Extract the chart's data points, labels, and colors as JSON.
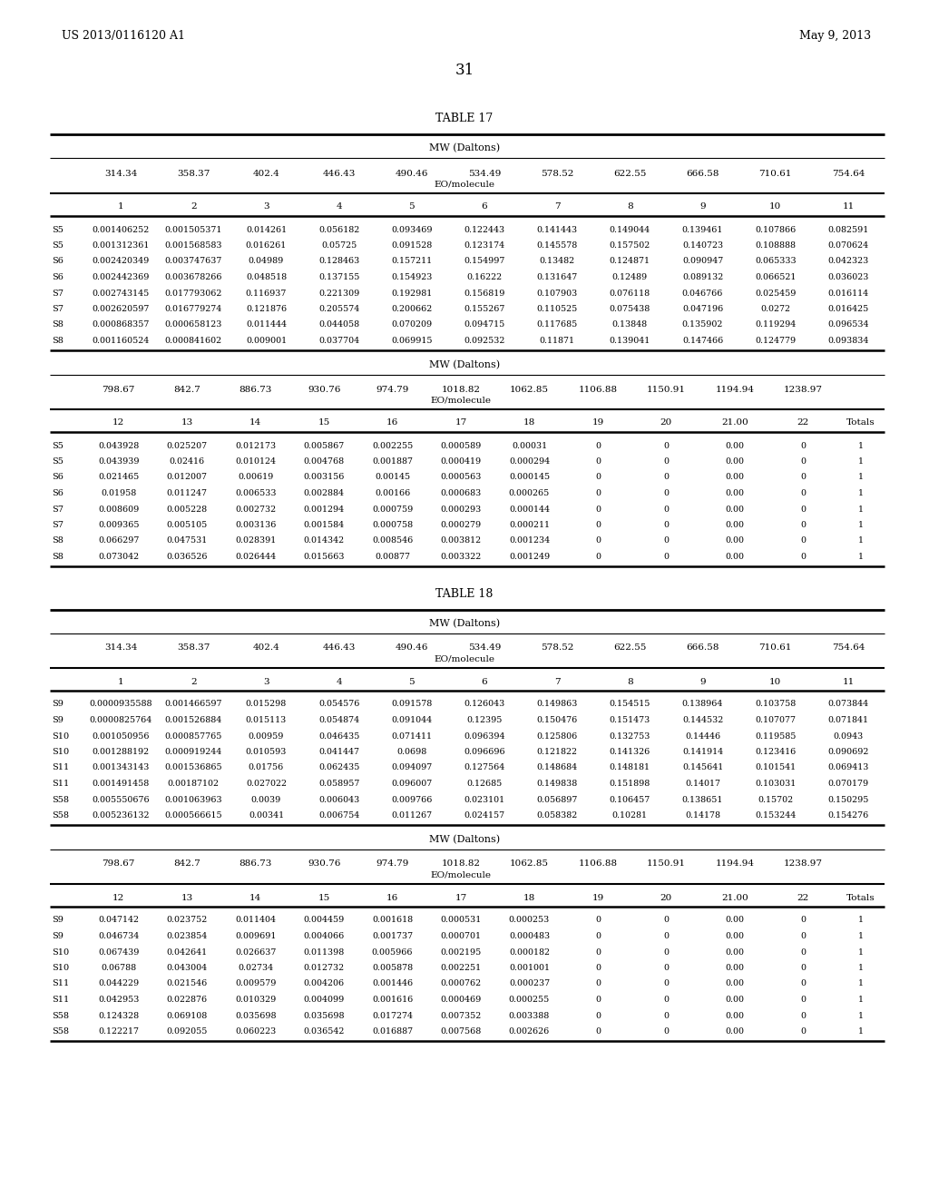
{
  "header_left": "US 2013/0116120 A1",
  "header_right": "May 9, 2013",
  "page_number": "31",
  "table17_title": "TABLE 17",
  "table18_title": "TABLE 18",
  "mw_label": "MW (Daltons)",
  "eo_label": "EO/molecule",
  "t17_cols1": [
    "314.34",
    "358.37",
    "402.4",
    "446.43",
    "490.46",
    "534.49",
    "578.52",
    "622.55",
    "666.58",
    "710.61",
    "754.64"
  ],
  "t17_cols2": [
    "798.67",
    "842.7",
    "886.73",
    "930.76",
    "974.79",
    "1018.82",
    "1062.85",
    "1106.88",
    "1150.91",
    "1194.94",
    "1238.97"
  ],
  "t17_eon1": [
    "1",
    "2",
    "3",
    "4",
    "5",
    "6",
    "7",
    "8",
    "9",
    "10",
    "11"
  ],
  "t17_eon2": [
    "12",
    "13",
    "14",
    "15",
    "16",
    "17",
    "18",
    "19",
    "20",
    "21.00",
    "22",
    "Totals"
  ],
  "t17_rows_part1": [
    [
      "S5",
      "0.001406252",
      "0.001505371",
      "0.014261",
      "0.056182",
      "0.093469",
      "0.122443",
      "0.141443",
      "0.149044",
      "0.139461",
      "0.107866",
      "0.082591"
    ],
    [
      "S5",
      "0.001312361",
      "0.001568583",
      "0.016261",
      "0.05725",
      "0.091528",
      "0.123174",
      "0.145578",
      "0.157502",
      "0.140723",
      "0.108888",
      "0.070624"
    ],
    [
      "S6",
      "0.002420349",
      "0.003747637",
      "0.04989",
      "0.128463",
      "0.157211",
      "0.154997",
      "0.13482",
      "0.124871",
      "0.090947",
      "0.065333",
      "0.042323"
    ],
    [
      "S6",
      "0.002442369",
      "0.003678266",
      "0.048518",
      "0.137155",
      "0.154923",
      "0.16222",
      "0.131647",
      "0.12489",
      "0.089132",
      "0.066521",
      "0.036023"
    ],
    [
      "S7",
      "0.002743145",
      "0.017793062",
      "0.116937",
      "0.221309",
      "0.192981",
      "0.156819",
      "0.107903",
      "0.076118",
      "0.046766",
      "0.025459",
      "0.016114"
    ],
    [
      "S7",
      "0.002620597",
      "0.016779274",
      "0.121876",
      "0.205574",
      "0.200662",
      "0.155267",
      "0.110525",
      "0.075438",
      "0.047196",
      "0.0272",
      "0.016425"
    ],
    [
      "S8",
      "0.000868357",
      "0.000658123",
      "0.011444",
      "0.044058",
      "0.070209",
      "0.094715",
      "0.117685",
      "0.13848",
      "0.135902",
      "0.119294",
      "0.096534"
    ],
    [
      "S8",
      "0.001160524",
      "0.000841602",
      "0.009001",
      "0.037704",
      "0.069915",
      "0.092532",
      "0.11871",
      "0.139041",
      "0.147466",
      "0.124779",
      "0.093834"
    ]
  ],
  "t17_rows_part2": [
    [
      "S5",
      "0.043928",
      "0.025207",
      "0.012173",
      "0.005867",
      "0.002255",
      "0.000589",
      "0.00031",
      "0",
      "0",
      "0.00",
      "0",
      "1"
    ],
    [
      "S5",
      "0.043939",
      "0.02416",
      "0.010124",
      "0.004768",
      "0.001887",
      "0.000419",
      "0.000294",
      "0",
      "0",
      "0.00",
      "0",
      "1"
    ],
    [
      "S6",
      "0.021465",
      "0.012007",
      "0.00619",
      "0.003156",
      "0.00145",
      "0.000563",
      "0.000145",
      "0",
      "0",
      "0.00",
      "0",
      "1"
    ],
    [
      "S6",
      "0.01958",
      "0.011247",
      "0.006533",
      "0.002884",
      "0.00166",
      "0.000683",
      "0.000265",
      "0",
      "0",
      "0.00",
      "0",
      "1"
    ],
    [
      "S7",
      "0.008609",
      "0.005228",
      "0.002732",
      "0.001294",
      "0.000759",
      "0.000293",
      "0.000144",
      "0",
      "0",
      "0.00",
      "0",
      "1"
    ],
    [
      "S7",
      "0.009365",
      "0.005105",
      "0.003136",
      "0.001584",
      "0.000758",
      "0.000279",
      "0.000211",
      "0",
      "0",
      "0.00",
      "0",
      "1"
    ],
    [
      "S8",
      "0.066297",
      "0.047531",
      "0.028391",
      "0.014342",
      "0.008546",
      "0.003812",
      "0.001234",
      "0",
      "0",
      "0.00",
      "0",
      "1"
    ],
    [
      "S8",
      "0.073042",
      "0.036526",
      "0.026444",
      "0.015663",
      "0.00877",
      "0.003322",
      "0.001249",
      "0",
      "0",
      "0.00",
      "0",
      "1"
    ]
  ],
  "t18_rows_part1": [
    [
      "S9",
      "0.0000935588",
      "0.001466597",
      "0.015298",
      "0.054576",
      "0.091578",
      "0.126043",
      "0.149863",
      "0.154515",
      "0.138964",
      "0.103758",
      "0.073844"
    ],
    [
      "S9",
      "0.0000825764",
      "0.001526884",
      "0.015113",
      "0.054874",
      "0.091044",
      "0.12395",
      "0.150476",
      "0.151473",
      "0.144532",
      "0.107077",
      "0.071841"
    ],
    [
      "S10",
      "0.001050956",
      "0.000857765",
      "0.00959",
      "0.046435",
      "0.071411",
      "0.096394",
      "0.125806",
      "0.132753",
      "0.14446",
      "0.119585",
      "0.0943"
    ],
    [
      "S10",
      "0.001288192",
      "0.000919244",
      "0.010593",
      "0.041447",
      "0.0698",
      "0.096696",
      "0.121822",
      "0.141326",
      "0.141914",
      "0.123416",
      "0.090692"
    ],
    [
      "S11",
      "0.001343143",
      "0.001536865",
      "0.01756",
      "0.062435",
      "0.094097",
      "0.127564",
      "0.148684",
      "0.148181",
      "0.145641",
      "0.101541",
      "0.069413"
    ],
    [
      "S11",
      "0.001491458",
      "0.00187102",
      "0.027022",
      "0.058957",
      "0.096007",
      "0.12685",
      "0.149838",
      "0.151898",
      "0.14017",
      "0.103031",
      "0.070179"
    ],
    [
      "S58",
      "0.005550676",
      "0.001063963",
      "0.0039",
      "0.006043",
      "0.009766",
      "0.023101",
      "0.056897",
      "0.106457",
      "0.138651",
      "0.15702",
      "0.150295"
    ],
    [
      "S58",
      "0.005236132",
      "0.000566615",
      "0.00341",
      "0.006754",
      "0.011267",
      "0.024157",
      "0.058382",
      "0.10281",
      "0.14178",
      "0.153244",
      "0.154276"
    ]
  ],
  "t18_rows_part2": [
    [
      "S9",
      "0.047142",
      "0.023752",
      "0.011404",
      "0.004459",
      "0.001618",
      "0.000531",
      "0.000253",
      "0",
      "0",
      "0.00",
      "0",
      "1"
    ],
    [
      "S9",
      "0.046734",
      "0.023854",
      "0.009691",
      "0.004066",
      "0.001737",
      "0.000701",
      "0.000483",
      "0",
      "0",
      "0.00",
      "0",
      "1"
    ],
    [
      "S10",
      "0.067439",
      "0.042641",
      "0.026637",
      "0.011398",
      "0.005966",
      "0.002195",
      "0.000182",
      "0",
      "0",
      "0.00",
      "0",
      "1"
    ],
    [
      "S10",
      "0.06788",
      "0.043004",
      "0.02734",
      "0.012732",
      "0.005878",
      "0.002251",
      "0.001001",
      "0",
      "0",
      "0.00",
      "0",
      "1"
    ],
    [
      "S11",
      "0.044229",
      "0.021546",
      "0.009579",
      "0.004206",
      "0.001446",
      "0.000762",
      "0.000237",
      "0",
      "0",
      "0.00",
      "0",
      "1"
    ],
    [
      "S11",
      "0.042953",
      "0.022876",
      "0.010329",
      "0.004099",
      "0.001616",
      "0.000469",
      "0.000255",
      "0",
      "0",
      "0.00",
      "0",
      "1"
    ],
    [
      "S58",
      "0.124328",
      "0.069108",
      "0.035698",
      "0.035698",
      "0.017274",
      "0.007352",
      "0.003388",
      "0",
      "0",
      "0.00",
      "0",
      "1"
    ],
    [
      "S58",
      "0.122217",
      "0.092055",
      "0.060223",
      "0.036542",
      "0.016887",
      "0.007568",
      "0.002626",
      "0",
      "0",
      "0.00",
      "0",
      "1"
    ]
  ]
}
